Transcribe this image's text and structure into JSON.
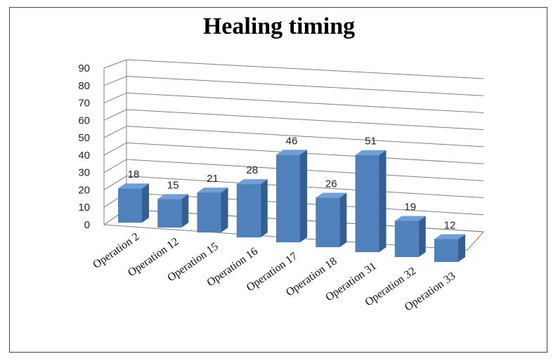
{
  "chart_data": {
    "type": "bar",
    "title": "Healing timing",
    "categories": [
      "Operation  2",
      "Operation  12",
      "Operation  15",
      "Operation  16",
      "Operation  17",
      "Operation  18",
      "Operation  31",
      "Operation  32",
      "Operation  33"
    ],
    "values": [
      18,
      15,
      21,
      28,
      46,
      26,
      51,
      19,
      12
    ],
    "ylim": [
      0,
      90
    ],
    "yticks": [
      "0",
      "10",
      "20",
      "30",
      "40",
      "50",
      "60",
      "70",
      "80",
      "90"
    ],
    "grid": true,
    "legend": "none",
    "colors": {
      "bar_front": "#4f81bd",
      "bar_side": "#365f91",
      "bar_top": "#6f9fd6",
      "grid": "#7f7f7f"
    }
  }
}
